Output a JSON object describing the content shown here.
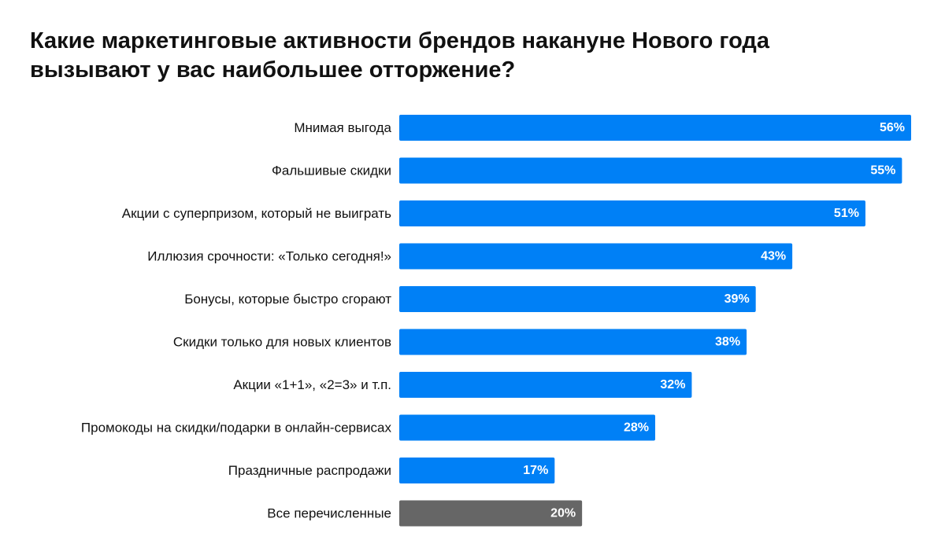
{
  "chart_data": {
    "type": "bar",
    "orientation": "horizontal",
    "title": [
      "Какие маркетинговые активности брендов накануне Нового года",
      "вызывают у вас наибольшее отторжение?"
    ],
    "categories": [
      "Мнимая выгода",
      "Фальшивые скидки",
      "Акции с суперпризом, который не выиграть",
      "Иллюзия срочности: «Только сегодня!»",
      "Бонусы, которые быстро сгорают",
      "Скидки только для новых клиентов",
      "Акции «1+1», «2=3» и т.п.",
      "Промокоды на скидки/подарки в онлайн-сервисах",
      "Праздничные распродажи",
      "Все перечисленные"
    ],
    "values": [
      56,
      55,
      51,
      43,
      39,
      38,
      32,
      28,
      17,
      20
    ],
    "value_labels": [
      "56%",
      "55%",
      "51%",
      "43%",
      "39%",
      "38%",
      "32%",
      "28%",
      "17%",
      "20%"
    ],
    "xlim": [
      0,
      56
    ],
    "grid": false,
    "legend": "none",
    "colors": {
      "bar": "#0080f6",
      "highlight_bar": "#666666"
    },
    "highlight_index": 9
  }
}
